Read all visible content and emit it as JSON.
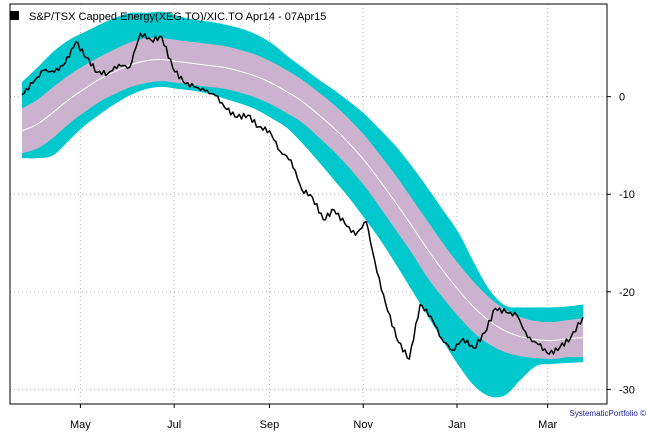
{
  "chart_data": {
    "type": "line",
    "title": "S&P/TSX Capped Energy(XEG.TO)/XIC.TO Apr14 - 07Apr15",
    "legend_position": "top-left",
    "grid": true,
    "y_axis_side": "right",
    "xlabel": "",
    "ylabel": "",
    "ylim": [
      -31.5,
      9.5
    ],
    "y_ticks": [
      0,
      -10,
      -20,
      -30
    ],
    "x_tick_labels": [
      "May",
      "Jul",
      "Sep",
      "Nov",
      "Jan",
      "Mar"
    ],
    "x_range_months": [
      "Apr14",
      "07Apr15"
    ],
    "colors": {
      "outer_band": "#00c8cc",
      "inner_band": "#cbb2cf",
      "mid_line": "#ffffff",
      "price_line": "#000000",
      "grid": "#b4b4b4"
    },
    "series": [
      {
        "name": "S&P/TSX Capped Energy(XEG.TO)/XIC.TO",
        "role": "relative_price",
        "points": [
          [
            "Apr 07",
            0.2
          ],
          [
            "Apr 14",
            1.4
          ],
          [
            "Apr 21",
            2.7
          ],
          [
            "Apr 28",
            2.5
          ],
          [
            "May 05",
            3.4
          ],
          [
            "May 12",
            5.6
          ],
          [
            "May 19",
            4.0
          ],
          [
            "May 26",
            2.5
          ],
          [
            "Jun 02",
            2.4
          ],
          [
            "Jun 09",
            3.3
          ],
          [
            "Jun 16",
            3.0
          ],
          [
            "Jun 23",
            6.5
          ],
          [
            "Jun 30",
            5.8
          ],
          [
            "Jul 07",
            6.1
          ],
          [
            "Jul 14",
            3.0
          ],
          [
            "Jul 21",
            1.5
          ],
          [
            "Jul 28",
            1.0
          ],
          [
            "Aug 04",
            0.6
          ],
          [
            "Aug 11",
            0.1
          ],
          [
            "Aug 18",
            -1.3
          ],
          [
            "Aug 25",
            -2.1
          ],
          [
            "Sep 01",
            -1.9
          ],
          [
            "Sep 08",
            -3.1
          ],
          [
            "Sep 15",
            -3.5
          ],
          [
            "Sep 22",
            -5.6
          ],
          [
            "Sep 29",
            -6.5
          ],
          [
            "Oct 06",
            -9.5
          ],
          [
            "Oct 13",
            -10.3
          ],
          [
            "Oct 20",
            -12.6
          ],
          [
            "Oct 27",
            -11.6
          ],
          [
            "Nov 03",
            -13.0
          ],
          [
            "Nov 10",
            -14.2
          ],
          [
            "Nov 17",
            -12.8
          ],
          [
            "Nov 24",
            -18.0
          ],
          [
            "Dec 01",
            -22.0
          ],
          [
            "Dec 08",
            -25.2
          ],
          [
            "Dec 15",
            -26.9
          ],
          [
            "Dec 22",
            -21.3
          ],
          [
            "Dec 29",
            -22.5
          ],
          [
            "Jan 05",
            -24.8
          ],
          [
            "Jan 12",
            -26.0
          ],
          [
            "Jan 19",
            -24.8
          ],
          [
            "Jan 26",
            -25.8
          ],
          [
            "Feb 02",
            -24.2
          ],
          [
            "Feb 09",
            -21.7
          ],
          [
            "Feb 16",
            -22.1
          ],
          [
            "Feb 23",
            -22.4
          ],
          [
            "Mar 02",
            -24.7
          ],
          [
            "Mar 09",
            -25.4
          ],
          [
            "Mar 16",
            -26.4
          ],
          [
            "Mar 23",
            -25.7
          ],
          [
            "Mar 30",
            -24.7
          ],
          [
            "Apr 07",
            -22.6
          ]
        ]
      },
      {
        "name": "band_mid",
        "values": [
          -3.5,
          -2.8,
          -1.6,
          -0.3,
          0.8,
          1.8,
          2.6,
          3.3,
          3.7,
          3.8,
          3.6,
          3.4,
          3.2,
          3.0,
          2.6,
          2.1,
          1.4,
          0.5,
          -0.5,
          -1.8,
          -3.2,
          -4.8,
          -6.6,
          -8.7,
          -10.9,
          -13.2,
          -15.6,
          -17.8,
          -19.8,
          -21.6,
          -23.0,
          -24.0,
          -24.6,
          -24.9,
          -25.0,
          -24.8,
          -24.7
        ]
      },
      {
        "name": "band_inner_upper",
        "values": [
          -1.2,
          -0.3,
          1.0,
          2.2,
          3.2,
          4.1,
          4.9,
          5.6,
          6.0,
          6.0,
          5.8,
          5.6,
          5.4,
          5.2,
          4.8,
          4.3,
          3.6,
          2.7,
          1.7,
          0.5,
          -0.8,
          -2.3,
          -4.0,
          -6.0,
          -8.1,
          -10.4,
          -12.7,
          -15.0,
          -17.1,
          -19.0,
          -20.6,
          -21.8,
          -22.6,
          -23.0,
          -23.1,
          -22.9,
          -22.7
        ]
      },
      {
        "name": "band_inner_lower",
        "values": [
          -5.8,
          -5.3,
          -4.2,
          -2.8,
          -1.6,
          -0.5,
          0.3,
          1.0,
          1.4,
          1.6,
          1.4,
          1.2,
          1.0,
          0.8,
          0.4,
          -0.1,
          -0.8,
          -1.7,
          -2.7,
          -4.1,
          -5.6,
          -7.3,
          -9.2,
          -11.4,
          -13.7,
          -16.0,
          -18.5,
          -20.6,
          -22.5,
          -24.2,
          -25.4,
          -26.2,
          -26.6,
          -26.8,
          -26.9,
          -26.7,
          -26.7
        ]
      },
      {
        "name": "band_outer_upper",
        "values": [
          1.5,
          3.0,
          4.6,
          5.8,
          6.6,
          7.4,
          8.1,
          8.6,
          8.6,
          8.7,
          8.3,
          7.9,
          7.7,
          7.4,
          7.0,
          6.4,
          5.5,
          4.2,
          3.0,
          1.8,
          0.7,
          -0.5,
          -1.8,
          -3.4,
          -5.1,
          -7.1,
          -9.3,
          -11.6,
          -13.9,
          -17.0,
          -19.8,
          -21.4,
          -21.6,
          -21.6,
          -21.6,
          -21.5,
          -21.3
        ]
      },
      {
        "name": "band_outer_lower",
        "values": [
          -6.3,
          -6.3,
          -6.0,
          -4.5,
          -3.0,
          -1.8,
          -0.7,
          0.2,
          0.8,
          1.0,
          0.8,
          0.6,
          0.3,
          -0.2,
          -0.7,
          -1.3,
          -2.2,
          -3.2,
          -4.8,
          -6.6,
          -8.5,
          -10.4,
          -12.5,
          -14.7,
          -17.2,
          -19.8,
          -22.4,
          -25.0,
          -27.5,
          -29.6,
          -30.7,
          -30.6,
          -29.0,
          -27.6,
          -27.4,
          -27.3,
          -27.2
        ]
      }
    ]
  },
  "legend": {
    "label": "S&P/TSX Capped Energy(XEG.TO)/XIC.TO Apr14 - 07Apr15",
    "color": "#000000"
  },
  "credit": {
    "text": "SystematicPortfolio ©"
  }
}
